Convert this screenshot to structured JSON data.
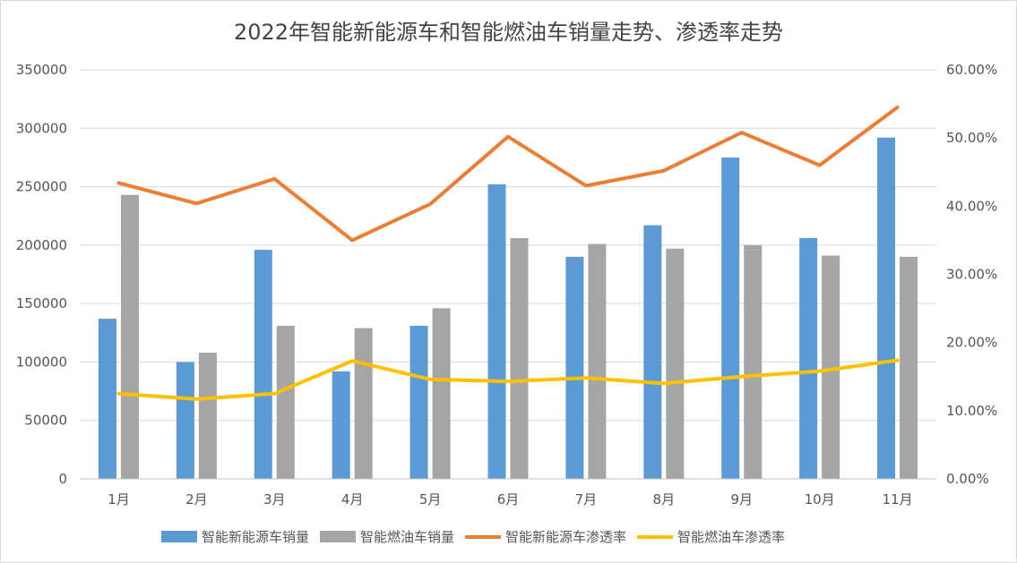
{
  "chart_data": {
    "type": "bar",
    "title": "2022年智能新能源车和智能燃油车销量走势、渗透率走势",
    "categories": [
      "1月",
      "2月",
      "3月",
      "4月",
      "5月",
      "6月",
      "7月",
      "8月",
      "9月",
      "10月",
      "11月"
    ],
    "y_left": {
      "ylim": [
        0,
        350000
      ],
      "ticks": [
        "0",
        "50000",
        "100000",
        "150000",
        "200000",
        "250000",
        "300000",
        "350000"
      ]
    },
    "y_right": {
      "ylim": [
        0,
        0.6
      ],
      "ticks": [
        "0.00%",
        "10.00%",
        "20.00%",
        "30.00%",
        "40.00%",
        "50.00%",
        "60.00%"
      ]
    },
    "grid": true,
    "legend_position": "bottom",
    "series": [
      {
        "name": "智能新能源车销量",
        "type": "bar",
        "axis": "left",
        "color": "#5B9BD5",
        "values": [
          137000,
          100000,
          196000,
          92000,
          131000,
          252000,
          190000,
          217000,
          275000,
          206000,
          292000
        ]
      },
      {
        "name": "智能燃油车销量",
        "type": "bar",
        "axis": "left",
        "color": "#A5A5A5",
        "values": [
          243000,
          108000,
          131000,
          129000,
          146000,
          206000,
          201000,
          197000,
          200000,
          191000,
          190000
        ]
      },
      {
        "name": "智能新能源车渗透率",
        "type": "line",
        "axis": "right",
        "color": "#ED7D31",
        "values": [
          0.434,
          0.404,
          0.44,
          0.35,
          0.403,
          0.502,
          0.43,
          0.452,
          0.508,
          0.46,
          0.545
        ]
      },
      {
        "name": "智能燃油车渗透率",
        "type": "line",
        "axis": "right",
        "color": "#FFC000",
        "values": [
          0.125,
          0.117,
          0.125,
          0.173,
          0.146,
          0.143,
          0.148,
          0.14,
          0.15,
          0.158,
          0.174
        ]
      }
    ]
  }
}
